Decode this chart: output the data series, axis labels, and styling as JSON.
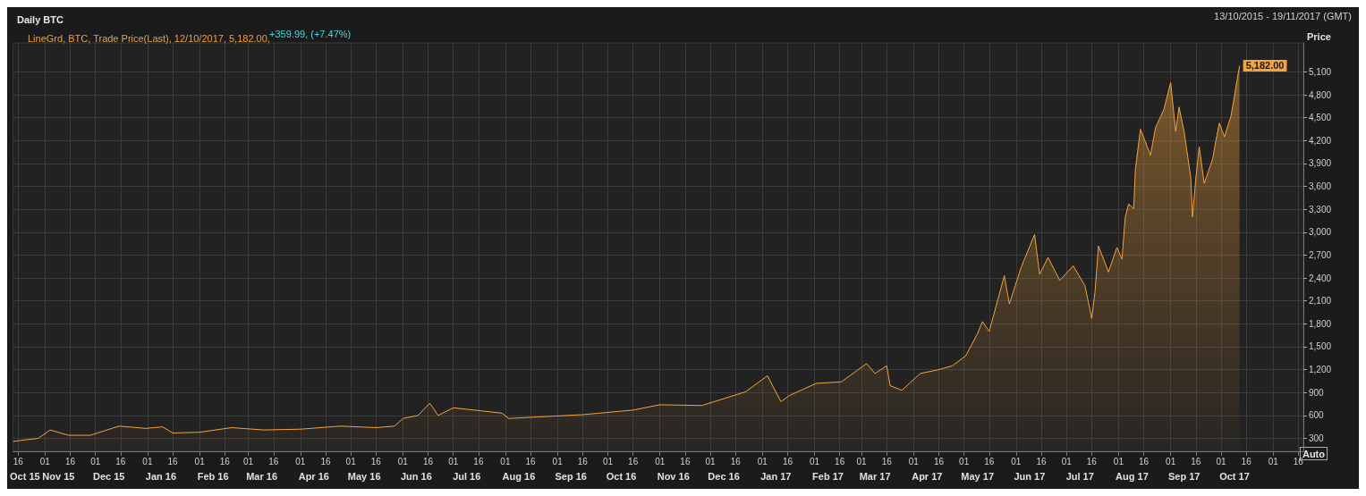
{
  "chart_data": {
    "type": "area",
    "title": "Daily BTC",
    "subtitle": "LineGrd, BTC, Trade Price(Last), 12/10/2017, 5,182.00,",
    "ylabel": "Price",
    "annotations": [
      "+359.99, (+7.47%)",
      "13/10/2015 - 19/11/2017 (GMT)",
      "Auto",
      "5,182.00"
    ],
    "x": [
      "2015-10-13",
      "2015-10-28",
      "2015-11-04",
      "2015-11-15",
      "2015-11-28",
      "2015-12-15",
      "2015-12-31",
      "2016-01-10",
      "2016-01-16",
      "2016-02-01",
      "2016-02-20",
      "2016-03-10",
      "2016-04-01",
      "2016-04-25",
      "2016-05-16",
      "2016-05-27",
      "2016-06-01",
      "2016-06-10",
      "2016-06-17",
      "2016-06-22",
      "2016-07-01",
      "2016-07-30",
      "2016-08-03",
      "2016-08-20",
      "2016-09-16",
      "2016-10-16",
      "2016-11-01",
      "2016-11-26",
      "2016-12-22",
      "2017-01-04",
      "2017-01-12",
      "2017-01-17",
      "2017-02-02",
      "2017-02-17",
      "2017-03-04",
      "2017-03-09",
      "2017-03-16",
      "2017-03-18",
      "2017-03-25",
      "2017-04-05",
      "2017-04-16",
      "2017-04-24",
      "2017-05-02",
      "2017-05-09",
      "2017-05-12",
      "2017-05-16",
      "2017-05-25",
      "2017-05-28",
      "2017-06-04",
      "2017-06-12",
      "2017-06-15",
      "2017-06-20",
      "2017-06-27",
      "2017-07-05",
      "2017-07-12",
      "2017-07-16",
      "2017-07-18",
      "2017-07-20",
      "2017-07-26",
      "2017-07-31",
      "2017-08-03",
      "2017-08-05",
      "2017-08-07",
      "2017-08-10",
      "2017-08-11",
      "2017-08-14",
      "2017-08-20",
      "2017-08-23",
      "2017-08-28",
      "2017-09-01",
      "2017-09-04",
      "2017-09-06",
      "2017-09-09",
      "2017-09-13",
      "2017-09-14",
      "2017-09-16",
      "2017-09-18",
      "2017-09-21",
      "2017-09-26",
      "2017-09-28",
      "2017-09-30",
      "2017-10-03",
      "2017-10-07",
      "2017-10-09",
      "2017-10-12"
    ],
    "series": [
      {
        "color": "#f5a33a",
        "values": [
          260,
          300,
          410,
          340,
          340,
          460,
          430,
          450,
          370,
          380,
          440,
          410,
          420,
          460,
          440,
          460,
          560,
          600,
          760,
          600,
          700,
          630,
          560,
          580,
          610,
          670,
          740,
          730,
          910,
          1120,
          780,
          860,
          1020,
          1040,
          1280,
          1150,
          1250,
          990,
          930,
          1150,
          1200,
          1250,
          1380,
          1670,
          1830,
          1700,
          2430,
          2060,
          2540,
          2970,
          2450,
          2670,
          2370,
          2560,
          2300,
          1870,
          2220,
          2820,
          2480,
          2800,
          2650,
          3200,
          3370,
          3310,
          3820,
          4350,
          4010,
          4370,
          4610,
          4960,
          4320,
          4640,
          4320,
          3710,
          3200,
          3710,
          4120,
          3640,
          3960,
          4210,
          4430,
          4250,
          4530,
          4790,
          5182
        ]
      }
    ],
    "xlim": [
      "2015-10-13",
      "2017-11-19"
    ],
    "xticks": [
      {
        "value": "2015-10-16",
        "label": "16"
      },
      {
        "value": "2015-11-01",
        "label": "01"
      },
      {
        "value": "2015-11-16",
        "label": "16"
      },
      {
        "value": "2015-12-01",
        "label": "01"
      },
      {
        "value": "2015-12-16",
        "label": "16"
      },
      {
        "value": "2016-01-01",
        "label": "01"
      },
      {
        "value": "2016-01-16",
        "label": "16"
      },
      {
        "value": "2016-02-01",
        "label": "01"
      },
      {
        "value": "2016-02-16",
        "label": "16"
      },
      {
        "value": "2016-03-01",
        "label": "01"
      },
      {
        "value": "2016-03-16",
        "label": "16"
      },
      {
        "value": "2016-04-01",
        "label": "01"
      },
      {
        "value": "2016-04-16",
        "label": "16"
      },
      {
        "value": "2016-05-01",
        "label": "01"
      },
      {
        "value": "2016-05-16",
        "label": "16"
      },
      {
        "value": "2016-06-01",
        "label": "01"
      },
      {
        "value": "2016-06-16",
        "label": "16"
      },
      {
        "value": "2016-07-01",
        "label": "01"
      },
      {
        "value": "2016-07-16",
        "label": "16"
      },
      {
        "value": "2016-08-01",
        "label": "01"
      },
      {
        "value": "2016-08-16",
        "label": "16"
      },
      {
        "value": "2016-09-01",
        "label": "01"
      },
      {
        "value": "2016-09-16",
        "label": "16"
      },
      {
        "value": "2016-10-01",
        "label": "01"
      },
      {
        "value": "2016-10-16",
        "label": "16"
      },
      {
        "value": "2016-11-01",
        "label": "01"
      },
      {
        "value": "2016-11-16",
        "label": "16"
      },
      {
        "value": "2016-12-01",
        "label": "01"
      },
      {
        "value": "2016-12-16",
        "label": "16"
      },
      {
        "value": "2017-01-01",
        "label": "01"
      },
      {
        "value": "2017-01-16",
        "label": "16"
      },
      {
        "value": "2017-02-01",
        "label": "01"
      },
      {
        "value": "2017-02-16",
        "label": "16"
      },
      {
        "value": "2017-03-01",
        "label": "01"
      },
      {
        "value": "2017-03-16",
        "label": "16"
      },
      {
        "value": "2017-04-01",
        "label": "01"
      },
      {
        "value": "2017-04-16",
        "label": "16"
      },
      {
        "value": "2017-05-01",
        "label": "01"
      },
      {
        "value": "2017-05-16",
        "label": "16"
      },
      {
        "value": "2017-06-01",
        "label": "01"
      },
      {
        "value": "2017-06-16",
        "label": "16"
      },
      {
        "value": "2017-07-01",
        "label": "01"
      },
      {
        "value": "2017-07-16",
        "label": "16"
      },
      {
        "value": "2017-08-01",
        "label": "01"
      },
      {
        "value": "2017-08-16",
        "label": "16"
      },
      {
        "value": "2017-09-01",
        "label": "01"
      },
      {
        "value": "2017-09-16",
        "label": "16"
      },
      {
        "value": "2017-10-01",
        "label": "01"
      },
      {
        "value": "2017-10-16",
        "label": "16"
      },
      {
        "value": "2017-11-01",
        "label": "01"
      },
      {
        "value": "2017-11-16",
        "label": "16"
      }
    ],
    "x2lim": [
      "2015-10-13",
      "2017-11-19"
    ],
    "x2ticks": [
      {
        "value": "2015-10-20",
        "label": "Oct 15"
      },
      {
        "value": "2015-11-09",
        "label": "Nov 15"
      },
      {
        "value": "2015-12-09",
        "label": "Dec 15"
      },
      {
        "value": "2016-01-09",
        "label": "Jan 16"
      },
      {
        "value": "2016-02-09",
        "label": "Feb 16"
      },
      {
        "value": "2016-03-09",
        "label": "Mar 16"
      },
      {
        "value": "2016-04-09",
        "label": "Apr 16"
      },
      {
        "value": "2016-05-09",
        "label": "May 16"
      },
      {
        "value": "2016-06-09",
        "label": "Jun 16"
      },
      {
        "value": "2016-07-09",
        "label": "Jul 16"
      },
      {
        "value": "2016-08-09",
        "label": "Aug 16"
      },
      {
        "value": "2016-09-09",
        "label": "Sep 16"
      },
      {
        "value": "2016-10-09",
        "label": "Oct 16"
      },
      {
        "value": "2016-11-09",
        "label": "Nov 16"
      },
      {
        "value": "2016-12-09",
        "label": "Dec 16"
      },
      {
        "value": "2017-01-09",
        "label": "Jan 17"
      },
      {
        "value": "2017-02-09",
        "label": "Feb 17"
      },
      {
        "value": "2017-03-09",
        "label": "Mar 17"
      },
      {
        "value": "2017-04-09",
        "label": "Apr 17"
      },
      {
        "value": "2017-05-09",
        "label": "May 17"
      },
      {
        "value": "2017-06-09",
        "label": "Jun 17"
      },
      {
        "value": "2017-07-09",
        "label": "Jul 17"
      },
      {
        "value": "2017-08-09",
        "label": "Aug 17"
      },
      {
        "value": "2017-09-09",
        "label": "Sep 17"
      },
      {
        "value": "2017-10-09",
        "label": "Oct 17"
      }
    ],
    "ylim": [
      130,
      5480
    ],
    "yticks": [
      {
        "value": 300,
        "label": "300"
      },
      {
        "value": 600,
        "label": "600"
      },
      {
        "value": 900,
        "label": "900"
      },
      {
        "value": 1200,
        "label": "1,200"
      },
      {
        "value": 1500,
        "label": "1,500"
      },
      {
        "value": 1800,
        "label": "1,800"
      },
      {
        "value": 2100,
        "label": "2,100"
      },
      {
        "value": 2400,
        "label": "2,400"
      },
      {
        "value": 2700,
        "label": "2,700"
      },
      {
        "value": 3000,
        "label": "3,000"
      },
      {
        "value": 3300,
        "label": "3,300"
      },
      {
        "value": 3600,
        "label": "3,600"
      },
      {
        "value": 3900,
        "label": "3,900"
      },
      {
        "value": 4200,
        "label": "4,200"
      },
      {
        "value": 4500,
        "label": "4,500"
      },
      {
        "value": 4800,
        "label": "4,800"
      },
      {
        "value": 5100,
        "label": "5,100"
      }
    ],
    "grid": true,
    "marker": "none",
    "line_style": "solid"
  }
}
